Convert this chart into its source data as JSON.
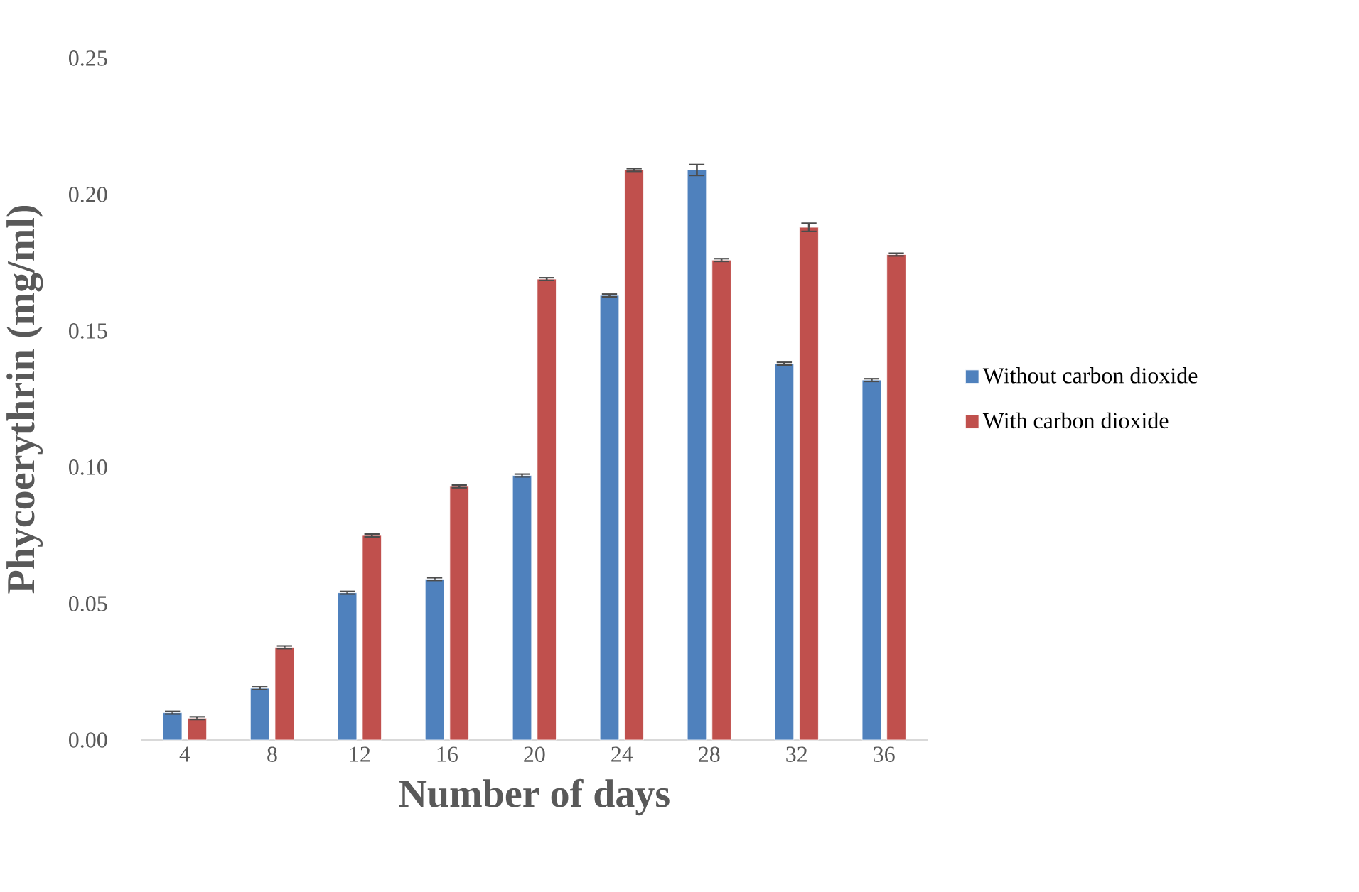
{
  "chart_data": {
    "type": "bar",
    "xlabel": "Number of days",
    "ylabel": "Phycoerythrin (mg/ml)",
    "categories": [
      "4",
      "8",
      "12",
      "16",
      "20",
      "24",
      "28",
      "32",
      "36"
    ],
    "series": [
      {
        "name": "Without carbon dioxide",
        "color": "#4f81bd",
        "values": [
          0.01,
          0.019,
          0.054,
          0.059,
          0.097,
          0.163,
          0.209,
          0.138,
          0.132
        ],
        "errors": [
          0.0005,
          0.0005,
          0.0005,
          0.0005,
          0.0005,
          0.0005,
          0.002,
          0.0005,
          0.0005
        ]
      },
      {
        "name": "With carbon dioxide",
        "color": "#c0504d",
        "values": [
          0.008,
          0.034,
          0.075,
          0.093,
          0.169,
          0.209,
          0.176,
          0.188,
          0.178
        ],
        "errors": [
          0.0005,
          0.0005,
          0.0005,
          0.0005,
          0.0005,
          0.0005,
          0.0005,
          0.0015,
          0.0005
        ]
      }
    ],
    "ylim": [
      0,
      0.25
    ],
    "yticks": [
      {
        "value": 0,
        "label": "0.00"
      },
      {
        "value": 0.05,
        "label": "0.05"
      },
      {
        "value": 0.1,
        "label": "0.10"
      },
      {
        "value": 0.15,
        "label": "0.15"
      },
      {
        "value": 0.2,
        "label": "0.20"
      },
      {
        "value": 0.25,
        "label": "0.25"
      }
    ],
    "legend": "right",
    "grid": false
  }
}
